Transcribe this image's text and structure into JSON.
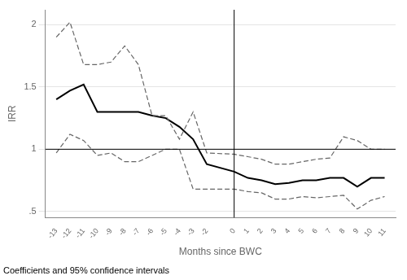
{
  "chart_data": {
    "type": "line",
    "x_label": "Months since BWC",
    "y_label": "IRR",
    "annotations": [
      "Coefficients and 95% confidence intervals"
    ],
    "x": [
      -13,
      -12,
      -11,
      -10,
      -9,
      -8,
      -7,
      -6,
      -5,
      -4,
      -3,
      -2,
      0,
      1,
      2,
      3,
      4,
      5,
      6,
      7,
      8,
      9,
      10,
      11
    ],
    "series": [
      {
        "color": "#666666",
        "line_style": "dashed",
        "values": [
          1.9,
          2.02,
          1.68,
          1.68,
          1.7,
          1.83,
          1.68,
          1.27,
          1.27,
          1.08,
          1.3,
          0.97,
          0.96,
          0.94,
          0.92,
          0.88,
          0.88,
          0.9,
          0.92,
          0.93,
          1.1,
          1.07,
          1.0,
          1.0
        ]
      },
      {
        "color": "#666666",
        "line_style": "dashed",
        "values": [
          0.97,
          1.12,
          1.07,
          0.95,
          0.97,
          0.9,
          0.9,
          0.95,
          1.0,
          1.0,
          0.68,
          0.68,
          0.68,
          0.66,
          0.65,
          0.6,
          0.6,
          0.62,
          0.61,
          0.62,
          0.63,
          0.52,
          0.59,
          0.62
        ]
      },
      {
        "color": "#000000",
        "line_style": "solid",
        "values": [
          1.4,
          1.47,
          1.52,
          1.3,
          1.3,
          1.3,
          1.3,
          1.27,
          1.25,
          1.18,
          1.08,
          0.88,
          0.82,
          0.77,
          0.75,
          0.72,
          0.73,
          0.75,
          0.75,
          0.77,
          0.77,
          0.7,
          0.77,
          0.77
        ]
      }
    ],
    "hline": {
      "value": 1.0,
      "color": "#000000"
    },
    "vline": {
      "value": 0,
      "color": "#000000"
    },
    "xlim": [
      -13.8,
      11.8
    ],
    "ylim": [
      0.45,
      2.12
    ],
    "xticks": [
      -13,
      -12,
      -11,
      -10,
      -9,
      -8,
      -7,
      -6,
      -5,
      -4,
      -3,
      -2,
      0,
      1,
      2,
      3,
      4,
      5,
      6,
      7,
      8,
      9,
      10,
      11
    ],
    "yticks": [
      {
        "value": 0.5,
        "label": ".5"
      },
      1,
      1.5,
      2
    ],
    "grid": "y"
  }
}
